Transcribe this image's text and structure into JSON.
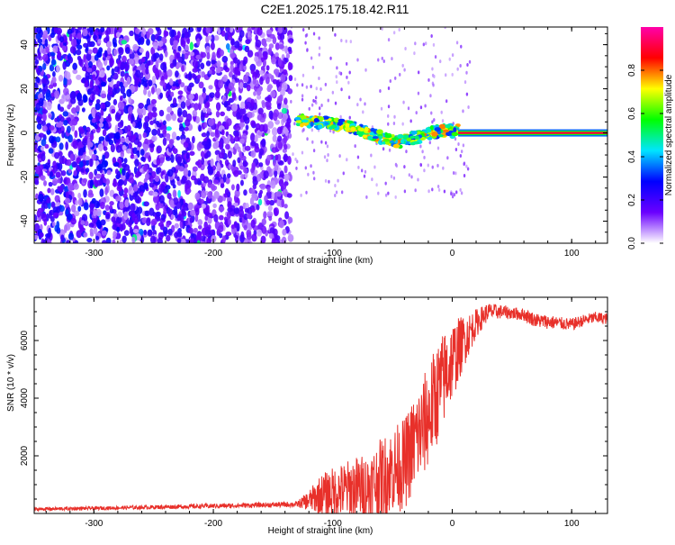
{
  "title": "C2E1.2025.175.18.42.R11",
  "chart_data": [
    {
      "type": "heatmap",
      "xlabel": "Height of straight line (km)",
      "ylabel": "Frequency (Hz)",
      "xlim": [
        -350,
        130
      ],
      "ylim": [
        -50,
        48
      ],
      "xticks": [
        -300,
        -200,
        -100,
        0,
        100
      ],
      "yticks": [
        -40,
        -20,
        0,
        20,
        40
      ],
      "colorbar": {
        "label": "Normalized spectral amplitude",
        "range": [
          0,
          1
        ],
        "ticks": [
          0.0,
          0.2,
          0.4,
          0.6,
          0.8
        ],
        "colors": [
          "#ffffff",
          "#6a00ff",
          "#0000ff",
          "#00e5ff",
          "#00ff00",
          "#ffff00",
          "#ff0000",
          "#ff00aa"
        ]
      },
      "regions": [
        {
          "x_range": [
            -350,
            -135
          ],
          "kind": "broadband noise",
          "amplitude": [
            0.05,
            0.3
          ]
        },
        {
          "x_range": [
            -130,
            5
          ],
          "kind": "tone near 0 Hz",
          "freq_trend_hz": [
            [
              -130,
              6
            ],
            [
              -100,
              4
            ],
            [
              -80,
              2
            ],
            [
              -60,
              -2
            ],
            [
              -45,
              -4
            ],
            [
              -30,
              -2
            ],
            [
              -10,
              1
            ],
            [
              5,
              1
            ]
          ],
          "amplitude": [
            0.3,
            0.8
          ]
        },
        {
          "x_range": [
            5,
            130
          ],
          "kind": "steady tone",
          "freq_hz": 0,
          "amplitude": 0.9
        }
      ]
    },
    {
      "type": "line",
      "xlabel": "Height of straight line (km)",
      "ylabel": "SNR (10 * v/v)",
      "xlim": [
        -350,
        130
      ],
      "ylim": [
        0,
        7500
      ],
      "xticks": [
        -300,
        -200,
        -100,
        0,
        100
      ],
      "yticks": [
        2000,
        4000,
        6000
      ],
      "color": "#e8302a",
      "x": [
        -350,
        -300,
        -250,
        -200,
        -150,
        -130,
        -120,
        -110,
        -100,
        -90,
        -80,
        -70,
        -60,
        -50,
        -40,
        -30,
        -25,
        -20,
        -15,
        -10,
        -5,
        0,
        10,
        20,
        30,
        40,
        50,
        60,
        70,
        80,
        90,
        100,
        110,
        120,
        130
      ],
      "y": [
        150,
        180,
        220,
        260,
        300,
        320,
        450,
        650,
        700,
        800,
        900,
        900,
        1200,
        1500,
        1700,
        2600,
        2900,
        3400,
        3900,
        4400,
        4900,
        5300,
        6000,
        6600,
        7000,
        7000,
        6950,
        6900,
        6700,
        6650,
        6600,
        6550,
        6700,
        6800,
        6750
      ],
      "spread": [
        60,
        60,
        70,
        80,
        90,
        100,
        350,
        700,
        900,
        1000,
        1100,
        1200,
        1400,
        1500,
        1600,
        1700,
        1800,
        1800,
        1800,
        1700,
        1600,
        1400,
        900,
        500,
        300,
        250,
        220,
        220,
        250,
        250,
        220,
        220,
        200,
        200,
        200
      ]
    }
  ]
}
